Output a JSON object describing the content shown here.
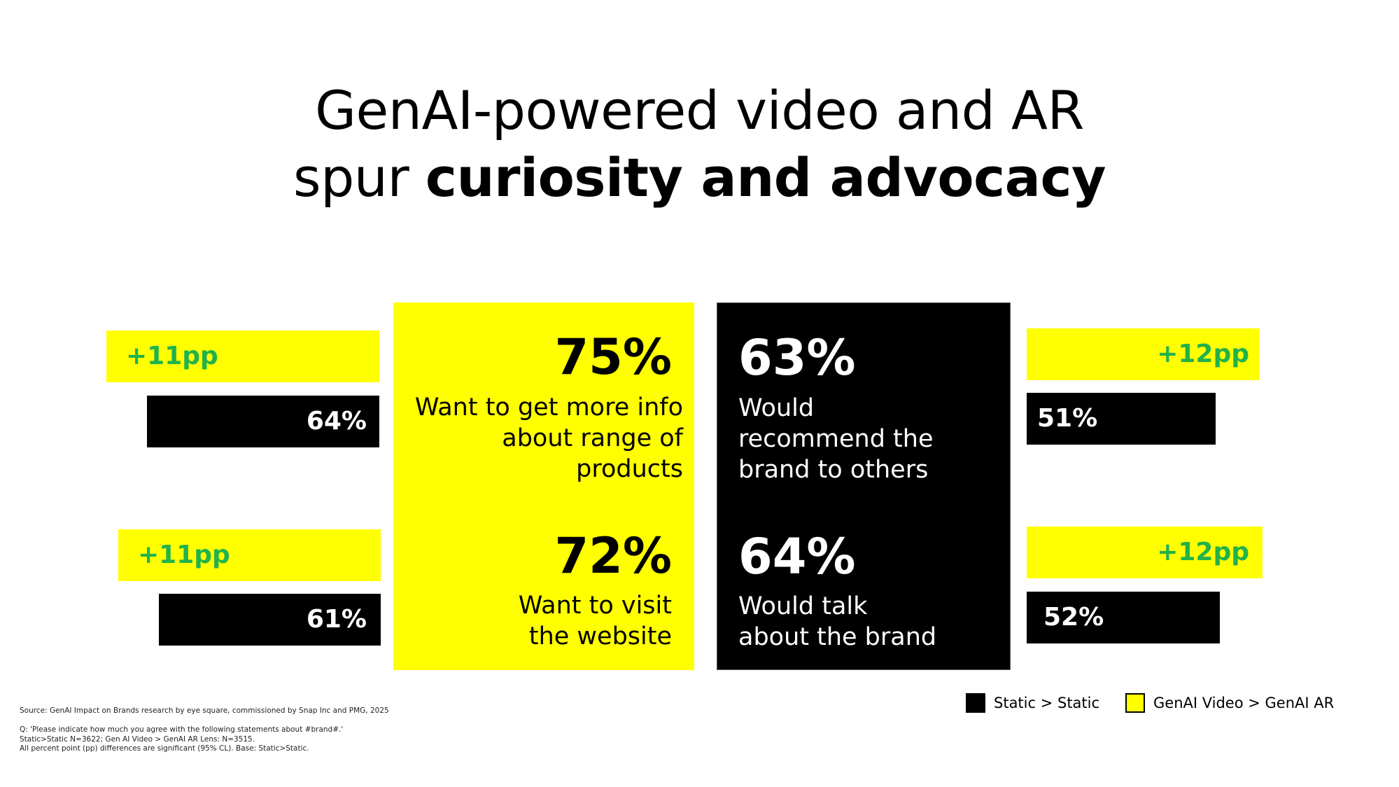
{
  "title": {
    "line1": "GenAI-powered video and AR",
    "line2_regular": "spur ",
    "line2_bold": "curiosity and advocacy"
  },
  "colors": {
    "genai": "#FFFF00",
    "static": "#000000",
    "pp_green": "#21B24B"
  },
  "chart_data": {
    "type": "bar",
    "categories": [
      "Want to get more info about range of products",
      "Want to visit the website",
      "Would recommend the brand to others",
      "Would talk about the brand"
    ],
    "series": [
      {
        "name": "Static > Static",
        "values": [
          64,
          61,
          51,
          52
        ]
      },
      {
        "name": "GenAI Video > GenAI AR",
        "values": [
          75,
          72,
          63,
          64
        ]
      }
    ],
    "unit": "%",
    "differences_pp": [
      11,
      11,
      12,
      12
    ]
  },
  "yellow_panel": {
    "stat1": {
      "value": "75%",
      "line1": "Want to get more info",
      "line2": "about range of products"
    },
    "stat2": {
      "value": "72%",
      "line1": "Want to visit",
      "line2": "the website"
    }
  },
  "black_panel": {
    "stat1": {
      "value": "63%",
      "line1": "Would",
      "line2": "recommend the",
      "line3": "brand to others"
    },
    "stat2": {
      "value": "64%",
      "line1": "Would talk",
      "line2": "about the brand"
    }
  },
  "left_bars": [
    {
      "pp": "+11pp",
      "pct": "64%"
    },
    {
      "pp": "+11pp",
      "pct": "61%"
    }
  ],
  "right_bars": [
    {
      "pp": "+12pp",
      "pct": "51%"
    },
    {
      "pp": "+12pp",
      "pct": "52%"
    }
  ],
  "legend": {
    "static": "Static > Static",
    "genai": "GenAI Video > GenAI AR"
  },
  "footnotes": {
    "source": "Source: GenAI Impact on Brands research by eye square, commissioned by Snap Inc and PMG, 2025",
    "q": "Q: 'Please indicate how much you agree with the following statements about #brand#.'",
    "base": "Static>Static N=3622; Gen AI Video > GenAI AR Lens: N=3515.",
    "sig": "All percent point (pp) differences are significant (95% CL). Base: Static>Static."
  }
}
